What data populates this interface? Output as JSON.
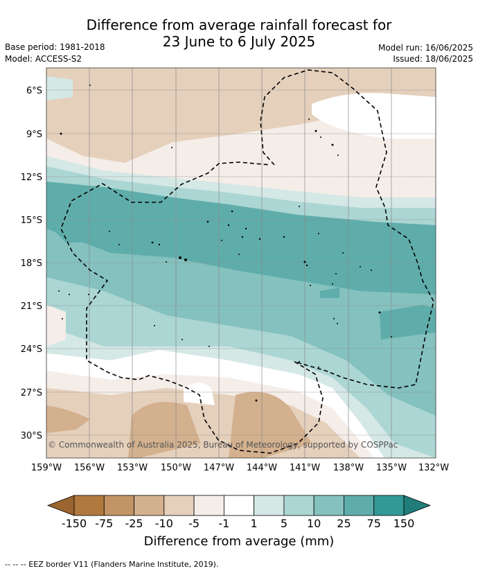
{
  "header": {
    "title_line1": "Difference from average rainfall forecast for",
    "title_line2": "23 June to 6 July 2025",
    "base_period": "Base period: 1981-2018",
    "model": "Model: ACCESS-S2",
    "model_run": "Model run: 16/06/2025",
    "issued": "Issued: 18/06/2025"
  },
  "map": {
    "lat_labels": [
      "6°S",
      "9°S",
      "12°S",
      "15°S",
      "18°S",
      "21°S",
      "24°S",
      "27°S",
      "30°S"
    ],
    "lon_labels": [
      "159°W",
      "156°W",
      "153°W",
      "150°W",
      "147°W",
      "144°W",
      "141°W",
      "138°W",
      "135°W",
      "132°W"
    ],
    "copyright": "© Commonwealth of Australia 2025, Bureau of Meteorology, supported by COSPPac"
  },
  "colorbar": {
    "tick_labels": [
      "-150",
      "-75",
      "-25",
      "-10",
      "-5",
      "-1",
      "1",
      "5",
      "10",
      "25",
      "75",
      "150"
    ],
    "colors": [
      "#b07a3e",
      "#c29466",
      "#d3b08e",
      "#e5d0bc",
      "#f5ede8",
      "#ffffff",
      "#d4e8e6",
      "#abd6d3",
      "#84c1bf",
      "#5fadab",
      "#339996"
    ],
    "low_extend_color": "#9b6530",
    "high_extend_color": "#207d7a",
    "title": "Difference from average (mm)"
  },
  "footer": {
    "legend_text": "--  --  -- EEZ border V11 (Flanders Marine Institute, 2019)."
  }
}
